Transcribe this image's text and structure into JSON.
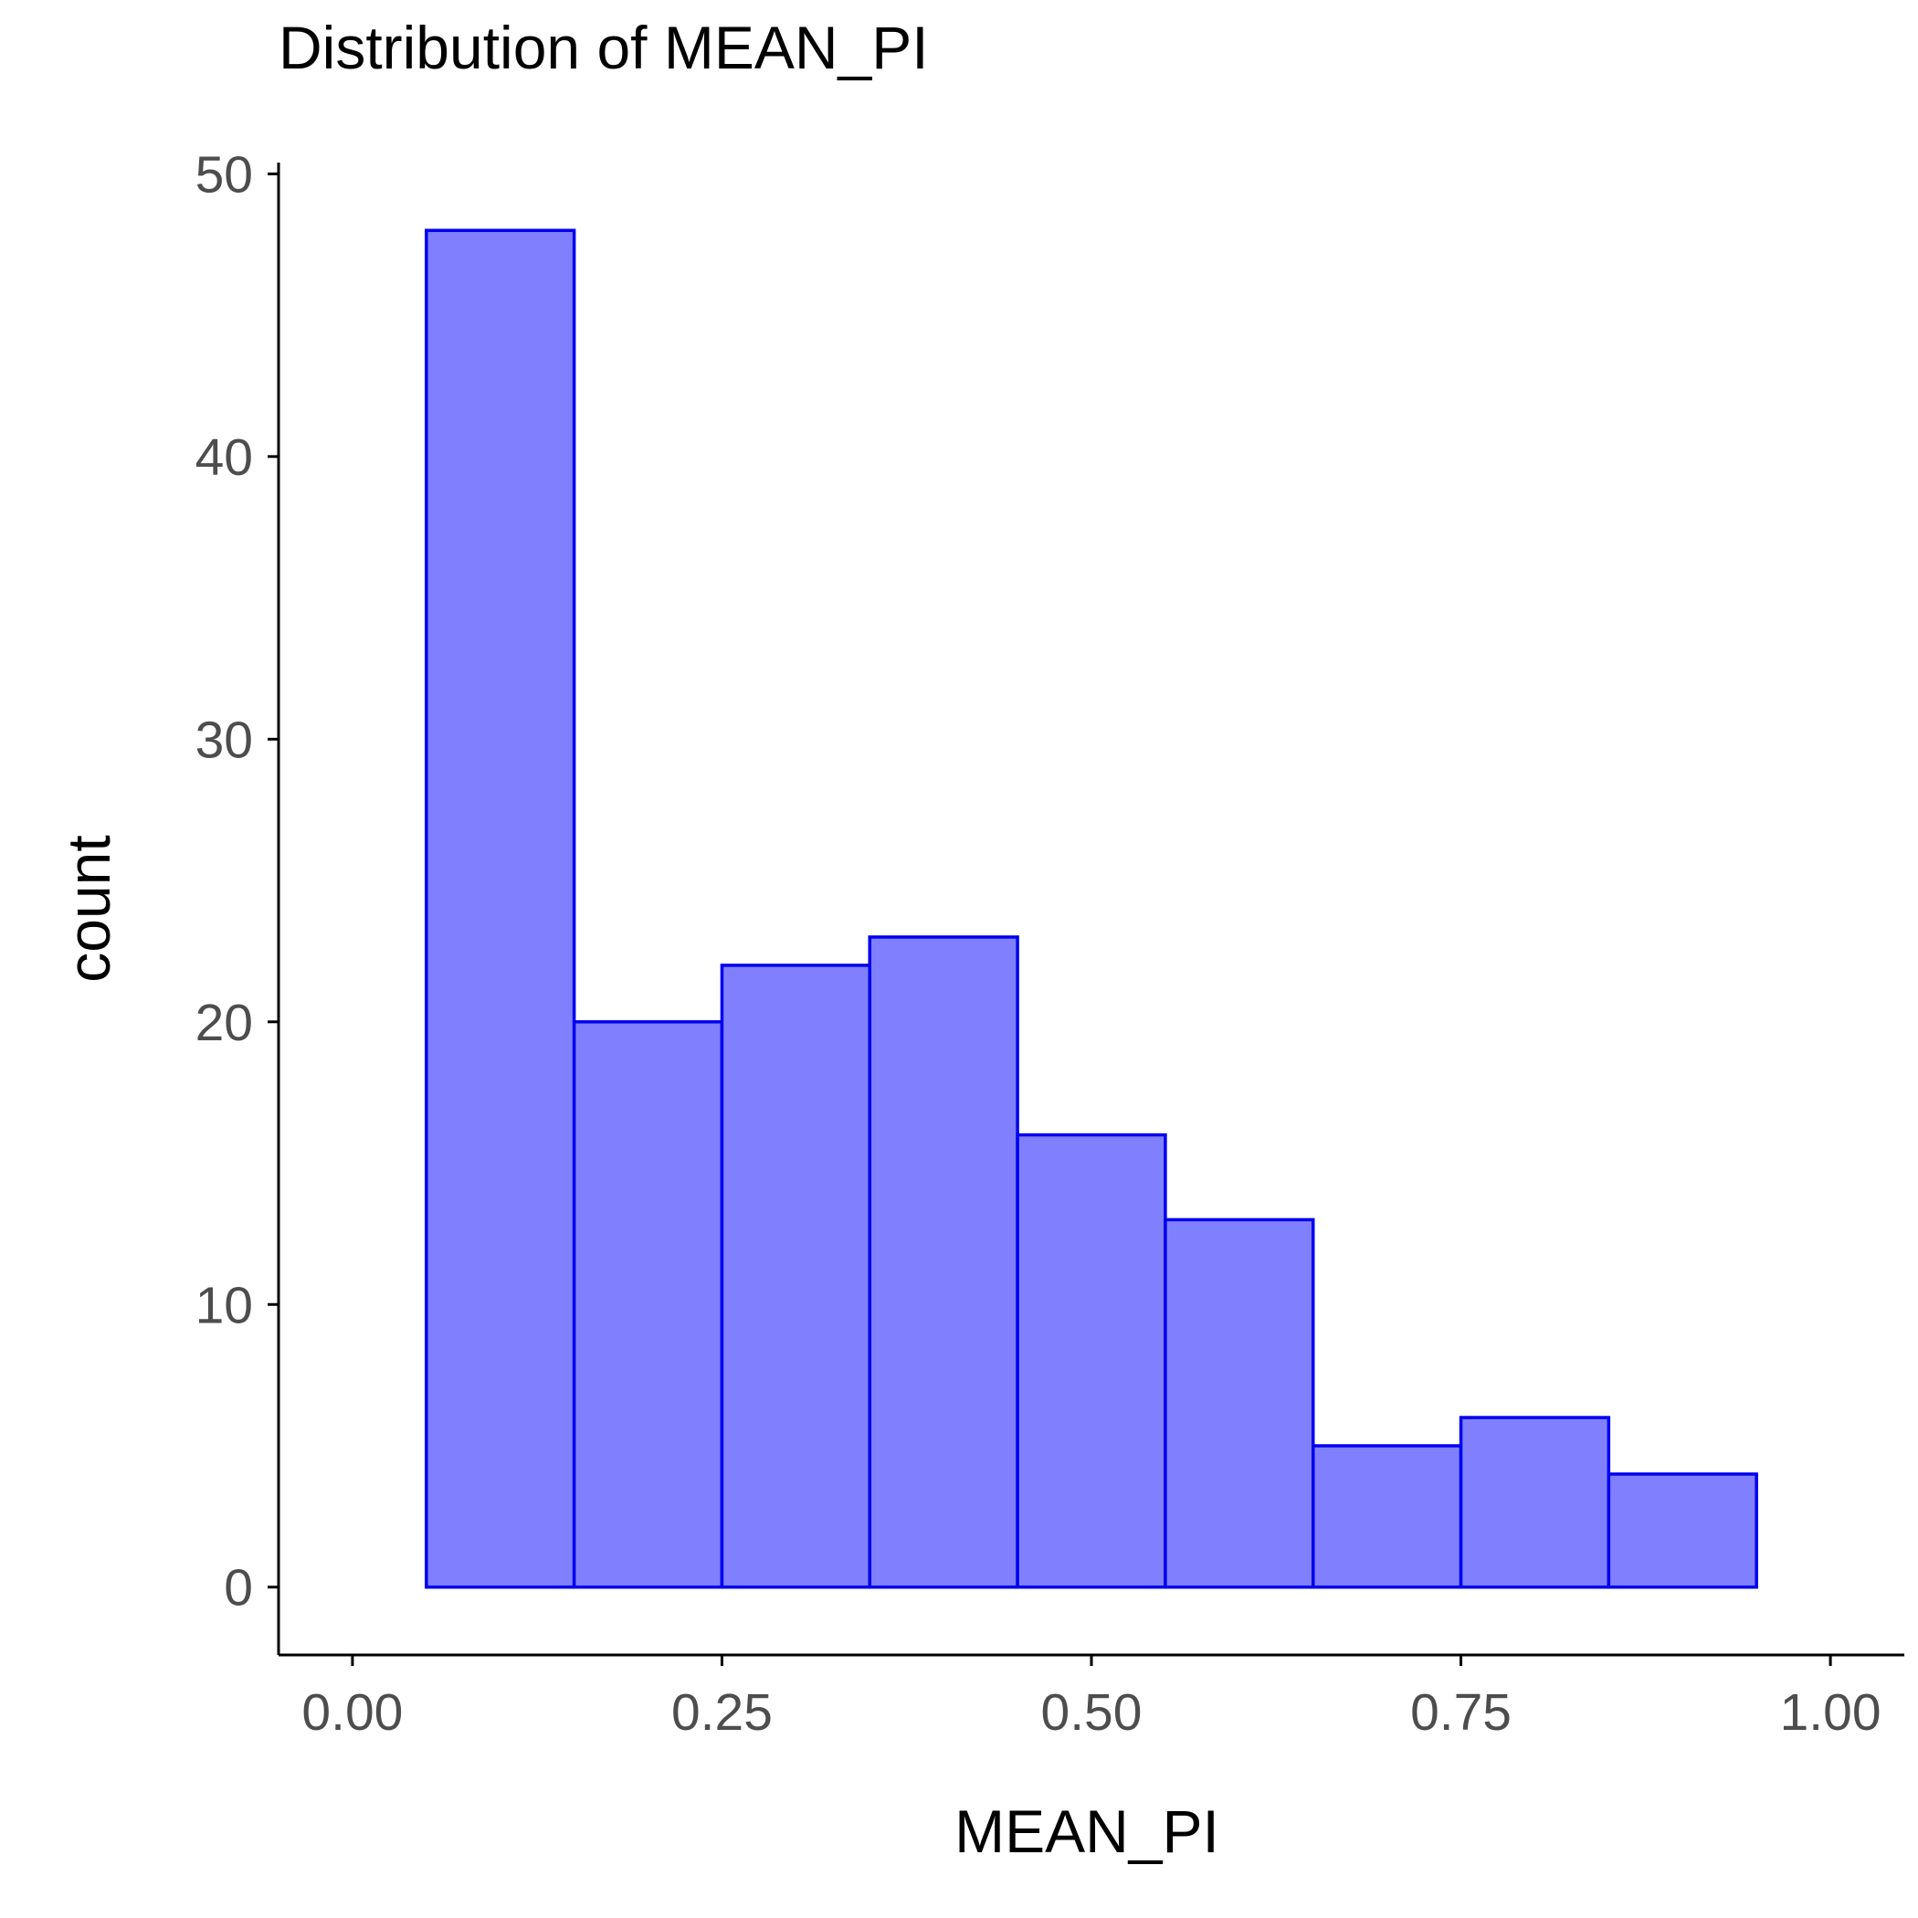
{
  "chart_data": {
    "type": "bar",
    "subtype": "histogram",
    "title": "Distribution of MEAN_PI",
    "xlabel": "MEAN_PI",
    "ylabel": "count",
    "bins": [
      {
        "x0": 0.05,
        "x1": 0.15,
        "count": 48
      },
      {
        "x0": 0.15,
        "x1": 0.25,
        "count": 20
      },
      {
        "x0": 0.25,
        "x1": 0.35,
        "count": 22
      },
      {
        "x0": 0.35,
        "x1": 0.45,
        "count": 23
      },
      {
        "x0": 0.45,
        "x1": 0.55,
        "count": 16
      },
      {
        "x0": 0.55,
        "x1": 0.65,
        "count": 13
      },
      {
        "x0": 0.65,
        "x1": 0.75,
        "count": 5
      },
      {
        "x0": 0.75,
        "x1": 0.85,
        "count": 6
      },
      {
        "x0": 0.85,
        "x1": 0.95,
        "count": 4
      }
    ],
    "xlim": [
      -0.05,
      1.05
    ],
    "ylim": [
      -2.4,
      50.4
    ],
    "xticks": [
      0.0,
      0.25,
      0.5,
      0.75,
      1.0
    ],
    "xtick_labels": [
      "0.00",
      "0.25",
      "0.50",
      "0.75",
      "1.00"
    ],
    "yticks": [
      0,
      10,
      20,
      30,
      40,
      50
    ],
    "ytick_labels": [
      "0",
      "10",
      "20",
      "30",
      "40",
      "50"
    ],
    "grid": false,
    "legend": "none",
    "colors": {
      "bar_fill": "#8080ff",
      "bar_stroke": "#0000ee",
      "axis": "#000000",
      "tick_label": "#4d4d4d",
      "title": "#000000"
    }
  }
}
